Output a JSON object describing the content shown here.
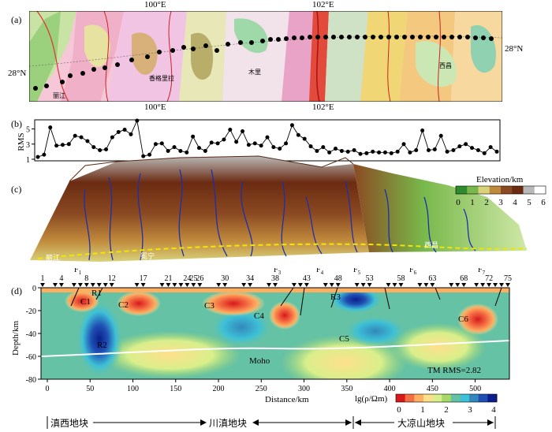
{
  "panel_labels": {
    "a": "(a)",
    "b": "(b)",
    "c": "(c)",
    "d": "(d)"
  },
  "map": {
    "top_lon_labels": [
      "100°E",
      "102°E"
    ],
    "bottom_lon_labels": [
      "100°E",
      "102°E"
    ],
    "left_lat_label": "28°N",
    "right_lat_label": "28°N",
    "place_labels": [
      "丽江",
      "木里",
      "西昌",
      "香格里拉"
    ]
  },
  "rms_panel": {
    "ylabel": "RMS",
    "yticks": [
      "1",
      "3",
      "5"
    ]
  },
  "elevation": {
    "title": "Elevation/km",
    "ticks": [
      "0",
      "1",
      "2",
      "3",
      "4",
      "5",
      "6"
    ],
    "colors": [
      "#2e8b2e",
      "#78b84a",
      "#d9d27a",
      "#c08a3c",
      "#8b4a22",
      "#6b2b12",
      "#b9b9b9",
      "#ffffff"
    ],
    "terrain_labels": [
      "丽江",
      "冕宁",
      "西昌"
    ]
  },
  "section": {
    "station_labels": [
      "1",
      "4",
      "8",
      "12",
      "17",
      "21",
      "24",
      "25",
      "26",
      "30",
      "34",
      "38",
      "43",
      "48",
      "53",
      "58",
      "63",
      "68",
      "72",
      "75"
    ],
    "fault_labels": [
      "F1",
      "F2",
      "F3",
      "F4",
      "F5",
      "F6",
      "F7"
    ],
    "anomaly_labels": [
      "R1",
      "C1",
      "C2",
      "R2",
      "C3",
      "C4",
      "R3",
      "C5",
      "C6"
    ],
    "moho_label": "Moho",
    "rms_text": "TM RMS=2.82",
    "ylabel": "Depth/km",
    "xlabel": "Distance/km",
    "yticks": [
      "0",
      "-20",
      "-40",
      "-60",
      "-80"
    ],
    "xticks": [
      "0",
      "50",
      "100",
      "150",
      "200",
      "250",
      "300",
      "350",
      "400",
      "450",
      "500"
    ],
    "colorbar_title": "lg(ρ/Ωm)",
    "colorbar_ticks": [
      "0",
      "1",
      "2",
      "3",
      "4"
    ],
    "colorbar_colors": [
      "#d7191c",
      "#f46d43",
      "#fdae61",
      "#fee08b",
      "#d9ef8b",
      "#a6d96a",
      "#66c2a5",
      "#3ec1d6",
      "#3288bd",
      "#1f4fb4",
      "#0b1f8c"
    ]
  },
  "blocks": [
    "滇西地块",
    "川滇地块",
    "大凉山地块"
  ],
  "chart_data": {
    "type": "line",
    "title": "",
    "xlabel": "",
    "ylabel": "RMS",
    "ylim": [
      1,
      6
    ],
    "x": [
      1,
      2,
      3,
      4,
      5,
      6,
      7,
      8,
      9,
      10,
      11,
      12,
      13,
      14,
      15,
      16,
      17,
      18,
      19,
      20,
      21,
      22,
      23,
      24,
      25,
      26,
      27,
      28,
      29,
      30,
      31,
      32,
      33,
      34,
      35,
      36,
      37,
      38,
      39,
      40,
      41,
      42,
      43,
      44,
      45,
      46,
      47,
      48,
      49,
      50,
      51,
      52,
      53,
      54,
      55,
      56,
      57,
      58,
      59,
      60,
      61,
      62,
      63,
      64,
      65,
      66,
      67,
      68,
      69,
      70,
      71,
      72,
      73,
      74,
      75
    ],
    "values": [
      1.3,
      1.6,
      5.2,
      2.8,
      2.9,
      3.0,
      4.1,
      3.9,
      3.4,
      2.6,
      2.2,
      2.3,
      3.9,
      4.6,
      4.9,
      4.3,
      6.1,
      1.4,
      1.6,
      3.0,
      3.1,
      2.1,
      2.6,
      2.1,
      1.9,
      4.0,
      2.5,
      2.1,
      3.2,
      3.1,
      3.6,
      4.9,
      3.3,
      4.7,
      2.9,
      3.1,
      2.8,
      3.9,
      2.6,
      2.4,
      3.1,
      5.5,
      4.2,
      3.7,
      2.7,
      2.1,
      2.6,
      1.9,
      2.4,
      2.1,
      2.0,
      2.2,
      1.7,
      1.8,
      2.0,
      1.9,
      1.9,
      1.8,
      2.0,
      3.0,
      1.9,
      2.2,
      4.8,
      2.2,
      2.3,
      4.1,
      2.0,
      2.2,
      2.7,
      3.0,
      2.5,
      2.2,
      1.8,
      2.6,
      2.0
    ]
  }
}
